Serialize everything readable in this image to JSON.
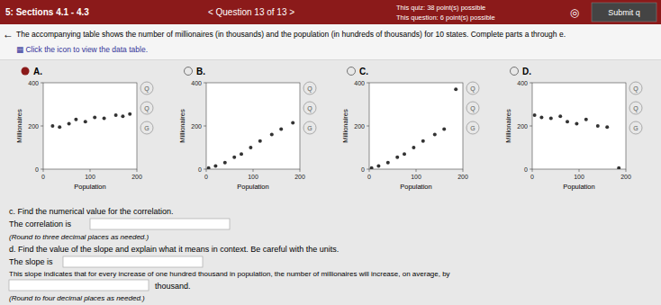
{
  "page": {
    "header_bg": "#8B1A1A",
    "header_text_color": "#FFFFFF",
    "body_bg": "#E8E8E8",
    "section_label": "5: Sections 4.1 - 4.3",
    "question_label": "< Question 13 of 13 >",
    "quiz_points": "This quiz: 38 point(s) possible",
    "question_points": "This question: 6 point(s) possible",
    "settings_icon": "◎",
    "submit_btn": "Submit q",
    "back_arrow": "←",
    "problem_text": "The accompanying table shows the number of millionaires (in thousands) and the population (in hundreds of thousands) for 10 states. Complete parts a through e.",
    "click_text": "▦ Click the icon to view the data table.",
    "selected_option": "A.",
    "selected_color": "#8B1A1A",
    "icons": [
      "Q",
      "Q",
      "G"
    ],
    "part_c_text": "c. Find the numerical value for the correlation.",
    "correlation_label": "The correlation is",
    "round3_note": "(Round to three decimal places as needed.)",
    "part_d_text": "d. Find the value of the slope and explain what it means in context. Be careful with the units.",
    "slope_label": "The slope is",
    "slope_explanation": "This slope indicates that for every increase of one hundred thousand in population, the number of millionaires will increase, on average, by",
    "thousand_label": "thousand.",
    "round4_note": "(Round to four decimal places as needed.)"
  },
  "chart_data": [
    {
      "type": "scatter",
      "title": "A.",
      "x_label": "Population",
      "y_label": "Millionaires",
      "color": "#333333",
      "xlim": [
        0,
        200
      ],
      "ylim": [
        0,
        400
      ],
      "xticks": [
        0,
        100,
        200
      ],
      "yticks": [
        0,
        200,
        400
      ],
      "x": [
        20,
        35,
        55,
        70,
        90,
        110,
        130,
        155,
        170,
        185
      ],
      "values": [
        200,
        195,
        210,
        230,
        220,
        240,
        235,
        250,
        245,
        255
      ]
    },
    {
      "type": "scatter",
      "title": "B.",
      "x_label": "Population",
      "y_label": "Millionaires",
      "color": "#333333",
      "xlim": [
        0,
        200
      ],
      "ylim": [
        0,
        400
      ],
      "xticks": [
        0,
        100,
        200
      ],
      "yticks": [
        0,
        200,
        400
      ],
      "x": [
        5,
        20,
        40,
        60,
        75,
        95,
        115,
        140,
        160,
        185
      ],
      "values": [
        5,
        15,
        30,
        55,
        70,
        100,
        130,
        160,
        185,
        215
      ]
    },
    {
      "type": "scatter",
      "title": "C.",
      "x_label": "Population",
      "y_label": "Millionaires",
      "color": "#333333",
      "xlim": [
        0,
        200
      ],
      "ylim": [
        0,
        400
      ],
      "xticks": [
        0,
        100,
        200
      ],
      "yticks": [
        0,
        200,
        400
      ],
      "x": [
        5,
        20,
        40,
        60,
        75,
        95,
        115,
        140,
        160,
        185
      ],
      "values": [
        5,
        15,
        30,
        55,
        70,
        100,
        130,
        160,
        185,
        370
      ]
    },
    {
      "type": "scatter",
      "title": "D.",
      "x_label": "Population",
      "y_label": "Millionaires",
      "color": "#333333",
      "xlim": [
        0,
        200
      ],
      "ylim": [
        0,
        400
      ],
      "xticks": [
        0,
        100,
        200
      ],
      "yticks": [
        0,
        200,
        400
      ],
      "x": [
        5,
        20,
        40,
        60,
        75,
        95,
        115,
        140,
        160,
        185
      ],
      "values": [
        250,
        240,
        235,
        245,
        220,
        210,
        230,
        200,
        195,
        5
      ]
    }
  ]
}
